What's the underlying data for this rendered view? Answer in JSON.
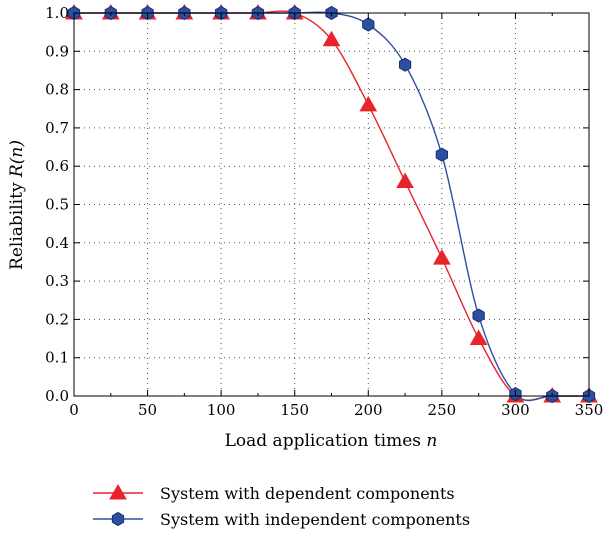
{
  "chart_data": {
    "type": "line",
    "title": "",
    "xlabel": "Load application times",
    "xlabel_var": "n",
    "ylabel": "Reliability",
    "ylabel_var": "R(n)",
    "xlim": [
      0,
      350
    ],
    "ylim": [
      0,
      1.0
    ],
    "xticks": [
      "0",
      "50",
      "100",
      "150",
      "200",
      "250",
      "300",
      "350"
    ],
    "yticks": [
      "0.0",
      "0.1",
      "0.2",
      "0.3",
      "0.4",
      "0.5",
      "0.6",
      "0.7",
      "0.8",
      "0.9",
      "1.0"
    ],
    "grid": true,
    "legend_position": "bottom",
    "series": [
      {
        "name": "System with dependent components",
        "marker": "triangle",
        "color": "#e8232a",
        "x": [
          0,
          25,
          50,
          75,
          100,
          125,
          150,
          175,
          200,
          225,
          250,
          275,
          300,
          325,
          350
        ],
        "y": [
          1.0,
          1.0,
          1.0,
          1.0,
          1.0,
          1.0,
          1.0,
          0.93,
          0.76,
          0.56,
          0.36,
          0.15,
          0.0,
          0.0,
          0.0
        ]
      },
      {
        "name": "System with independent components",
        "marker": "hexagon",
        "color": "#2c4ea3",
        "x": [
          0,
          25,
          50,
          75,
          100,
          125,
          150,
          175,
          200,
          225,
          250,
          275,
          300,
          325,
          350
        ],
        "y": [
          1.0,
          1.0,
          1.0,
          1.0,
          1.0,
          1.0,
          1.0,
          1.0,
          0.97,
          0.865,
          0.63,
          0.21,
          0.005,
          0.0,
          0.0
        ]
      }
    ]
  }
}
